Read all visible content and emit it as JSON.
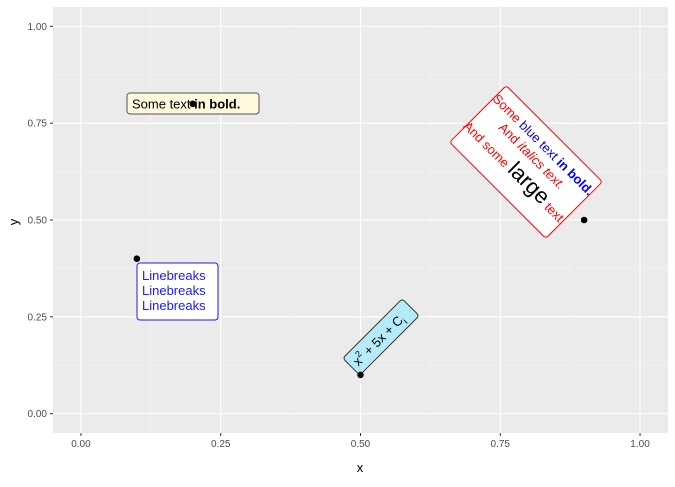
{
  "chart_data": {
    "type": "scatter",
    "xlabel": "x",
    "ylabel": "y",
    "xlim": [
      -0.05,
      1.05
    ],
    "ylim": [
      -0.05,
      1.05
    ],
    "x_ticks": [
      0.0,
      0.25,
      0.5,
      0.75,
      1.0
    ],
    "y_ticks": [
      0.0,
      0.25,
      0.5,
      0.75,
      1.0
    ],
    "x_tick_labels": [
      "0.00",
      "0.25",
      "0.50",
      "0.75",
      "1.00"
    ],
    "y_tick_labels": [
      "0.00",
      "0.25",
      "0.50",
      "0.75",
      "1.00"
    ],
    "grid": true,
    "legend": "none",
    "points": [
      {
        "x": 0.2,
        "y": 0.8
      },
      {
        "x": 0.1,
        "y": 0.4
      },
      {
        "x": 0.5,
        "y": 0.1
      },
      {
        "x": 0.9,
        "y": 0.5
      }
    ],
    "annotations": {
      "bold_label": {
        "plain": "Some text ",
        "bold": "in bold.",
        "fill": "#fff8dc",
        "border": "#555555"
      },
      "linebreaks_label": {
        "lines": [
          "Linebreaks",
          "Linebreaks",
          "Linebreaks"
        ],
        "color": "#1a1aff",
        "border": "#1a1aff"
      },
      "math_label": {
        "t1": "x",
        "t2": "2",
        "t3": " + 5x + C",
        "t4": "i",
        "fill": "#b5ecf7",
        "border": "#333333",
        "angle": -45
      },
      "rich_label": {
        "line1": {
          "a": "Some ",
          "b": "blue text ",
          "c": "in bold."
        },
        "line2": {
          "a": "And ",
          "b": "italics text."
        },
        "line3": {
          "a": "And some ",
          "b": "large",
          "c": " text."
        },
        "red": "#ff0000",
        "blue": "#0000ff",
        "border": "#ff0000",
        "angle": 45
      }
    }
  }
}
